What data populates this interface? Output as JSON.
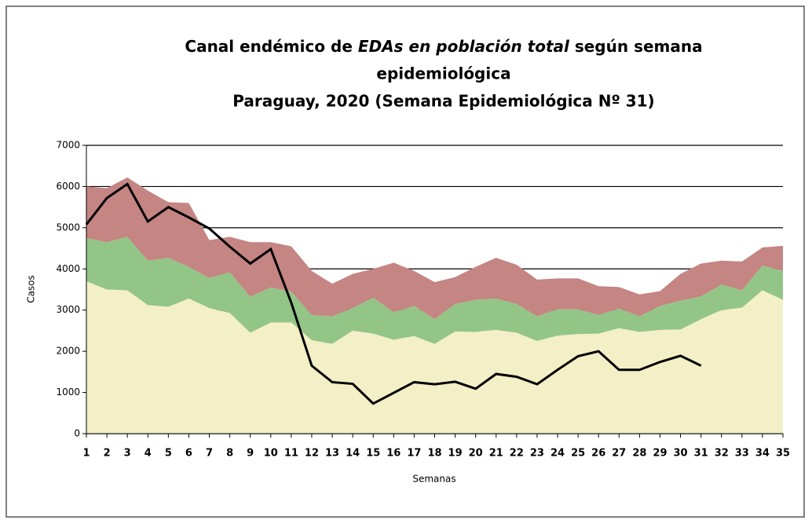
{
  "chart_data": {
    "type": "area",
    "title_lines": [
      [
        "Canal endémico de ",
        "EDAs en población total",
        " según semana"
      ],
      [
        "epidemiológica"
      ],
      [
        "Paraguay, 2020 (Semana Epidemiológica Nº 31)"
      ]
    ],
    "x_label": "Semanas",
    "y_label": "Casos",
    "x": [
      1,
      2,
      3,
      4,
      5,
      6,
      7,
      8,
      9,
      10,
      11,
      12,
      13,
      14,
      15,
      16,
      17,
      18,
      19,
      20,
      21,
      22,
      23,
      24,
      25,
      26,
      27,
      28,
      29,
      30,
      31,
      32,
      33,
      34,
      35
    ],
    "xlim": [
      1,
      35
    ],
    "xticks": [
      1,
      2,
      3,
      4,
      5,
      6,
      7,
      8,
      9,
      10,
      11,
      12,
      13,
      14,
      15,
      16,
      17,
      18,
      19,
      20,
      21,
      22,
      23,
      24,
      25,
      26,
      27,
      28,
      29,
      30,
      31,
      32,
      33,
      34,
      35
    ],
    "ylim": [
      0,
      7000
    ],
    "yticks": [
      0,
      1000,
      2000,
      3000,
      4000,
      5000,
      6000,
      7000
    ],
    "grid": true,
    "stacked": true,
    "series": [
      {
        "color": "#f3efc6",
        "values": [
          3700,
          3500,
          3480,
          3120,
          3080,
          3280,
          3050,
          2930,
          2450,
          2700,
          2700,
          2270,
          2180,
          2500,
          2430,
          2280,
          2370,
          2180,
          2480,
          2470,
          2520,
          2450,
          2250,
          2380,
          2420,
          2430,
          2560,
          2470,
          2520,
          2530,
          2780,
          3000,
          3060,
          3480,
          3250
        ]
      },
      {
        "color": "#93c587",
        "values": [
          1050,
          1150,
          1300,
          1080,
          1190,
          770,
          730,
          990,
          870,
          850,
          750,
          610,
          670,
          550,
          870,
          670,
          730,
          600,
          670,
          780,
          760,
          700,
          600,
          640,
          600,
          450,
          480,
          380,
          580,
          700,
          550,
          620,
          420,
          600,
          700
        ]
      },
      {
        "color": "#c48583",
        "values": [
          1250,
          1310,
          1440,
          1700,
          1350,
          1550,
          920,
          860,
          1330,
          1100,
          1100,
          1070,
          790,
          830,
          700,
          1200,
          850,
          900,
          650,
          800,
          990,
          950,
          890,
          750,
          750,
          700,
          520,
          530,
          360,
          650,
          800,
          580,
          700,
          440,
          610
        ]
      },
      {
        "color": "#000000",
        "type": "line",
        "values": [
          5080,
          5720,
          6060,
          5150,
          5500,
          5250,
          4980,
          4540,
          4130,
          4480,
          3180,
          1650,
          1250,
          1210,
          730,
          990,
          1250,
          1200,
          1260,
          1090,
          1450,
          1380,
          1200,
          1550,
          1880,
          2000,
          1550,
          1550,
          1740,
          1890,
          1650,
          null,
          null,
          null,
          null
        ]
      }
    ]
  }
}
